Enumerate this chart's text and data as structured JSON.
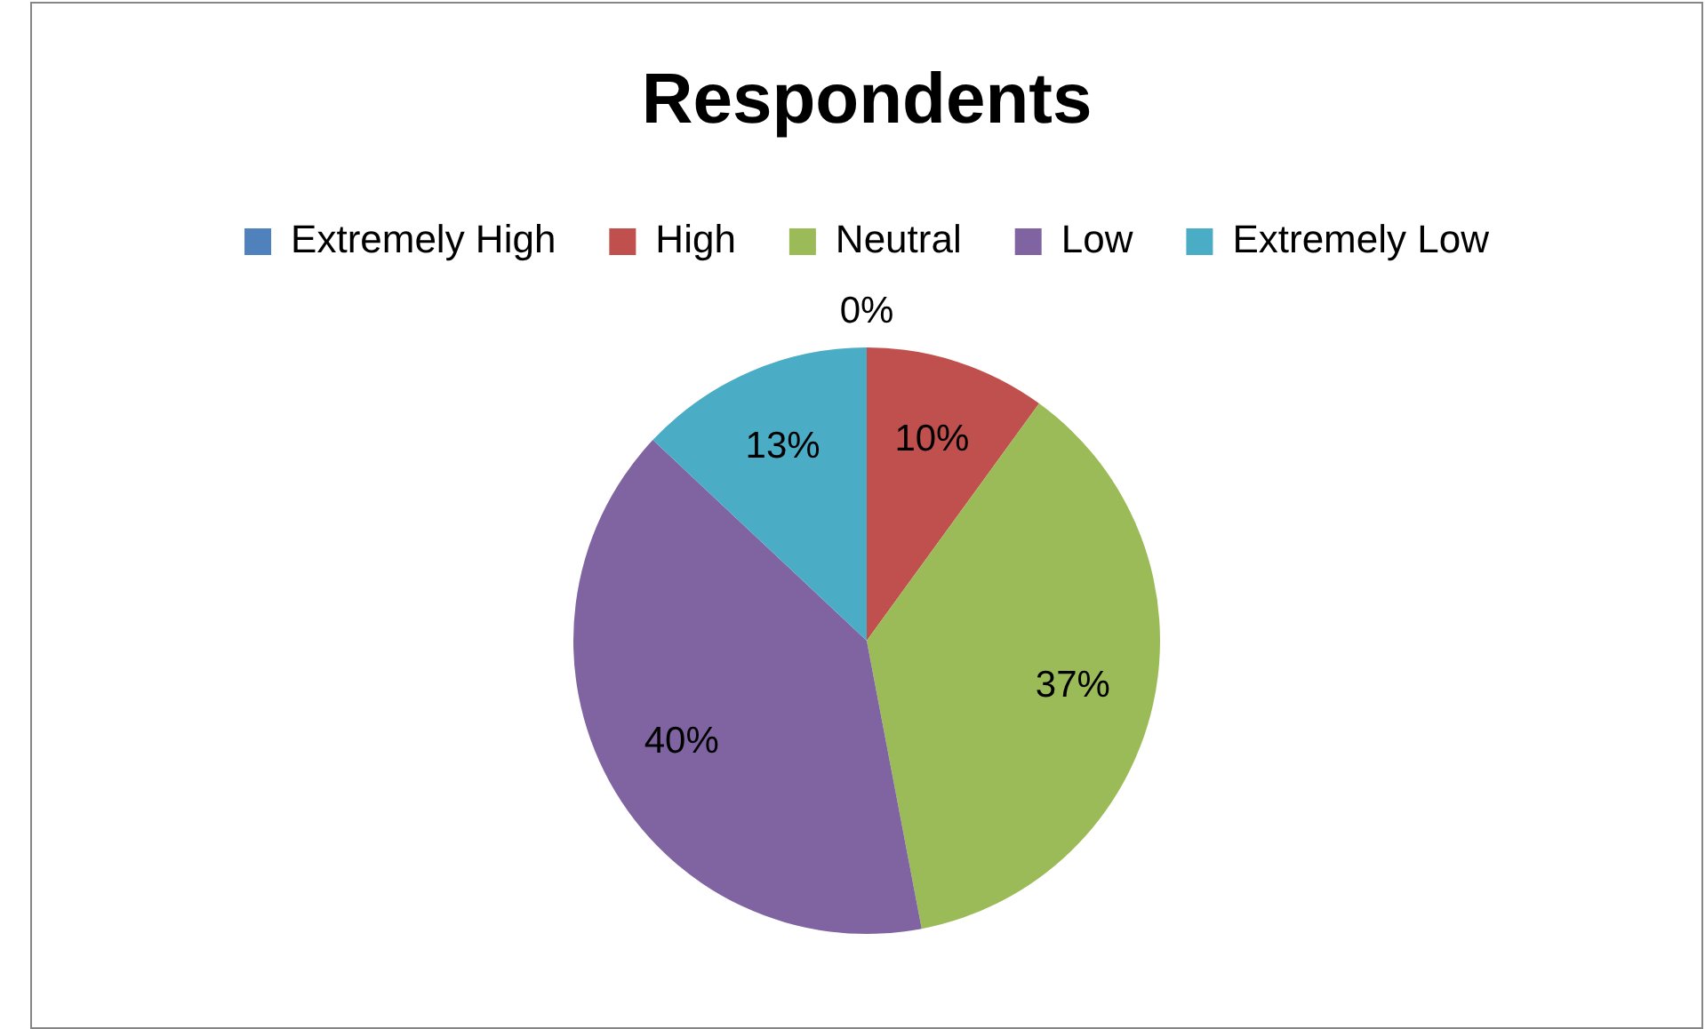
{
  "chart_data": {
    "type": "pie",
    "title": "Respondents",
    "categories": [
      "Extremely High",
      "High",
      "Neutral",
      "Low",
      "Extremely Low"
    ],
    "values": [
      0,
      10,
      37,
      40,
      13
    ],
    "value_labels": [
      "0%",
      "10%",
      "37%",
      "40%",
      "13%"
    ],
    "colors": [
      "#4f81bd",
      "#c0504d",
      "#9bbb59",
      "#8064a2",
      "#4bacc6"
    ],
    "legend": "top"
  }
}
